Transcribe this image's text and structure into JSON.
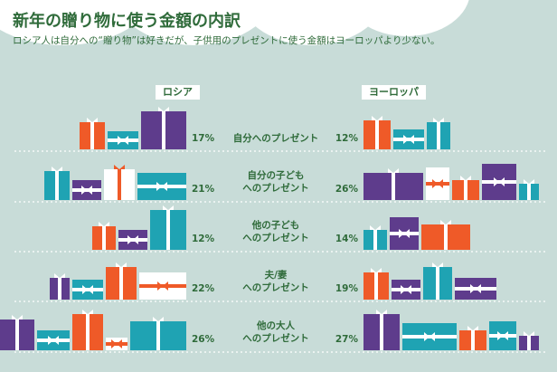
{
  "colors": {
    "background": "#c8dcd8",
    "text": "#2f6b3a",
    "orange": "#ef5a28",
    "purple": "#5e3c8c",
    "teal": "#1fa3b3",
    "white": "#ffffff",
    "ribbon_white": "#ffffff"
  },
  "header": {
    "title": "新年の贈り物に使う金額の内訳",
    "subtitle": "ロシア人は自分への“贈り物”は好きだが、子供用のプレゼントに使う金額はヨーロッパより少ない。"
  },
  "chart_data": {
    "type": "bar",
    "series": [
      {
        "name": "ロシア",
        "values": [
          17,
          21,
          12,
          22,
          26
        ]
      },
      {
        "name": "ヨーロッパ",
        "values": [
          12,
          26,
          14,
          19,
          27
        ]
      }
    ],
    "categories": [
      [
        "自分へのプレゼント"
      ],
      [
        "自分の子ども",
        "へのプレゼント"
      ],
      [
        "他の子ども",
        "へのプレゼント"
      ],
      [
        "夫/妻",
        "へのプレゼント"
      ],
      [
        "他の大人",
        "へのプレゼント"
      ]
    ],
    "value_labels": {
      "russia": [
        "17%",
        "21%",
        "12%",
        "22%",
        "26%"
      ],
      "europe": [
        "12%",
        "26%",
        "14%",
        "19%",
        "27%"
      ]
    },
    "mark": "gift-box-groups",
    "legend_placement": "column-headers"
  }
}
